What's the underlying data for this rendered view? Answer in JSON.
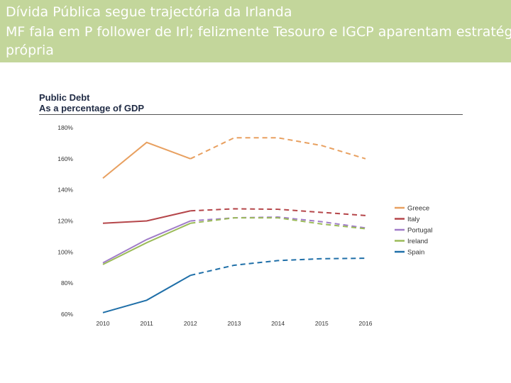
{
  "banner": {
    "line1": "Dívida Pública segue trajectória da Irlanda",
    "line2": "MF fala em P follower de Irl; felizmente Tesouro e IGCP aparentam estratégia",
    "line3": "própria"
  },
  "chart_data": {
    "type": "line",
    "title": "Public Debt",
    "subtitle": "As a percentage of GDP",
    "xlabel": "",
    "ylabel": "",
    "categories": [
      "2010",
      "2011",
      "2012",
      "2013",
      "2014",
      "2015",
      "2016"
    ],
    "y_ticks": [
      "60%",
      "80%",
      "100%",
      "120%",
      "140%",
      "160%",
      "180%"
    ],
    "ylim": [
      60,
      180
    ],
    "actual_until": "2012",
    "projected_style": "dashed",
    "legend_position": "right",
    "series": [
      {
        "name": "Greece",
        "color": "#e8a060",
        "values": [
          147.5,
          170.5,
          160,
          173.5,
          173.5,
          168.5,
          160
        ]
      },
      {
        "name": "Italy",
        "color": "#b5464a",
        "values": [
          118.5,
          120,
          126.5,
          127.8,
          127.5,
          125.5,
          123.5
        ]
      },
      {
        "name": "Portugal",
        "color": "#a07cc8",
        "values": [
          93,
          108,
          120,
          122,
          122.5,
          119.5,
          115.5
        ]
      },
      {
        "name": "Ireland",
        "color": "#9bbb59",
        "values": [
          92,
          106,
          118.5,
          122,
          122,
          118,
          115
        ]
      },
      {
        "name": "Spain",
        "color": "#1f6fa8",
        "values": [
          61,
          69,
          85,
          91.5,
          94.5,
          95.7,
          96
        ]
      }
    ]
  }
}
